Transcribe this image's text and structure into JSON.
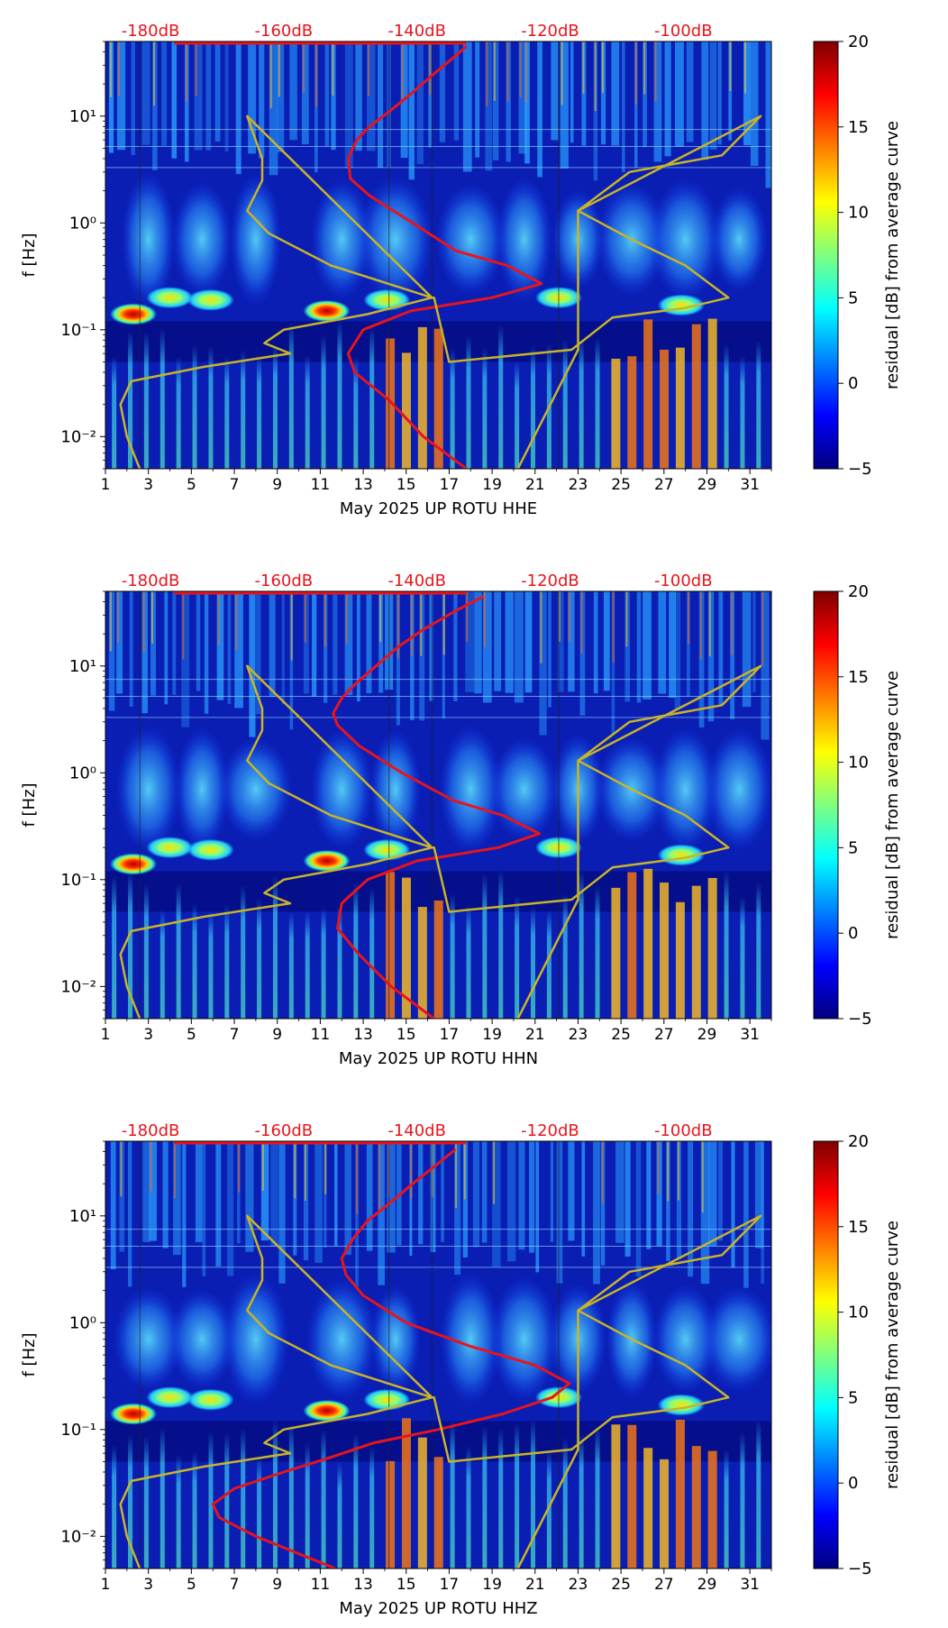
{
  "figure": {
    "colors": {
      "noise_model_curve": "#e8141c",
      "band_curve": "#c8b428",
      "top_axis_labels": "#e8141c",
      "background": "#ffffff"
    },
    "colormap_stops": [
      "#00007f",
      "#0000ff",
      "#007fff",
      "#00ffff",
      "#7fff7f",
      "#ffff00",
      "#ff7f00",
      "#ff0000",
      "#7f0000"
    ]
  },
  "chart_data": [
    {
      "type": "heatmap",
      "panel": "top",
      "title": "",
      "xlabel": "May 2025 UP ROTU  HHE",
      "ylabel": "f [Hz]",
      "x_range_days": [
        1,
        32
      ],
      "x_ticks": [
        "1",
        "3",
        "5",
        "7",
        "9",
        "11",
        "13",
        "15",
        "17",
        "19",
        "21",
        "23",
        "25",
        "27",
        "29",
        "31"
      ],
      "y_scale": "log",
      "y_range_hz": [
        0.005,
        50
      ],
      "y_tick_values": [
        0.01,
        0.1,
        1,
        10
      ],
      "y_ticks": [
        "10⁻²",
        "10⁻¹",
        "10⁰",
        "10¹"
      ],
      "top_axis_labels": [
        "-180dB",
        "-160dB",
        "-140dB",
        "-120dB",
        "-100dB"
      ],
      "colorbar": {
        "label": "residual [dB] from average curve",
        "range": [
          -5,
          20
        ],
        "ticks": [
          "−5",
          "0",
          "5",
          "10",
          "15",
          "20"
        ]
      },
      "series": [
        {
          "name": "average noise curve",
          "color": "red",
          "points_day_hz": [
            [
              17.8,
              0.005
            ],
            [
              15.8,
              0.01
            ],
            [
              14.2,
              0.022
            ],
            [
              12.6,
              0.04
            ],
            [
              12.3,
              0.06
            ],
            [
              13,
              0.1
            ],
            [
              15.2,
              0.15
            ],
            [
              19,
              0.2
            ],
            [
              21.3,
              0.27
            ],
            [
              19.7,
              0.4
            ],
            [
              17.3,
              0.55
            ],
            [
              15.3,
              1
            ],
            [
              13.3,
              1.8
            ],
            [
              12.4,
              2.6
            ],
            [
              12.3,
              4
            ],
            [
              12.7,
              6
            ],
            [
              13.3,
              8
            ],
            [
              14.2,
              11
            ],
            [
              15.2,
              16
            ],
            [
              16.2,
              24
            ],
            [
              17.1,
              34
            ],
            [
              17.8,
              45
            ]
          ]
        },
        {
          "name": "noise model bounds",
          "color": "yellow",
          "points_day_hz": [
            [
              2.6,
              0.005
            ],
            [
              2.0,
              0.01
            ],
            [
              1.7,
              0.02
            ],
            [
              2.2,
              0.033
            ],
            [
              5.6,
              0.045
            ],
            [
              9.6,
              0.06
            ],
            [
              8.4,
              0.075
            ],
            [
              9.3,
              0.1
            ],
            [
              13.2,
              0.14
            ],
            [
              16.2,
              0.2
            ],
            [
              11.5,
              0.4
            ],
            [
              8.6,
              0.8
            ],
            [
              7.6,
              1.3
            ],
            [
              8.3,
              2.5
            ],
            [
              8.3,
              4
            ],
            [
              7.6,
              10
            ],
            [
              16.2,
              0.2
            ],
            [
              16.3,
              0.2
            ],
            [
              17.0,
              0.05
            ],
            [
              22.7,
              0.065
            ],
            [
              24.6,
              0.13
            ],
            [
              28,
              0.16
            ],
            [
              30,
              0.2
            ],
            [
              28,
              0.4
            ],
            [
              25.5,
              0.7
            ],
            [
              23.0,
              1.3
            ],
            [
              25.4,
              3
            ],
            [
              29.7,
              4.3
            ],
            [
              31.5,
              10
            ],
            [
              23.0,
              1.3
            ],
            [
              23.0,
              0.065
            ],
            [
              20.2,
              0.005
            ]
          ]
        }
      ]
    },
    {
      "type": "heatmap",
      "panel": "middle",
      "title": "",
      "xlabel": "May 2025 UP ROTU  HHN",
      "ylabel": "f [Hz]",
      "x_range_days": [
        1,
        32
      ],
      "x_ticks": [
        "1",
        "3",
        "5",
        "7",
        "9",
        "11",
        "13",
        "15",
        "17",
        "19",
        "21",
        "23",
        "25",
        "27",
        "29",
        "31"
      ],
      "y_scale": "log",
      "y_range_hz": [
        0.005,
        50
      ],
      "y_tick_values": [
        0.01,
        0.1,
        1,
        10
      ],
      "y_ticks": [
        "10⁻²",
        "10⁻¹",
        "10⁰",
        "10¹"
      ],
      "top_axis_labels": [
        "-180dB",
        "-160dB",
        "-140dB",
        "-120dB",
        "-100dB"
      ],
      "colorbar": {
        "label": "residual [dB] from average curve",
        "range": [
          -5,
          20
        ],
        "ticks": [
          "−5",
          "0",
          "5",
          "10",
          "15",
          "20"
        ]
      },
      "series": [
        {
          "name": "average noise curve",
          "color": "red",
          "points_day_hz": [
            [
              16.3,
              0.005
            ],
            [
              14.3,
              0.01
            ],
            [
              12.8,
              0.02
            ],
            [
              11.8,
              0.035
            ],
            [
              12.0,
              0.06
            ],
            [
              13.2,
              0.1
            ],
            [
              15.5,
              0.15
            ],
            [
              19.3,
              0.2
            ],
            [
              21.2,
              0.27
            ],
            [
              19.5,
              0.4
            ],
            [
              17.2,
              0.55
            ],
            [
              14.8,
              1.0
            ],
            [
              12.8,
              1.8
            ],
            [
              11.8,
              2.8
            ],
            [
              11.6,
              3.6
            ],
            [
              12.0,
              5
            ],
            [
              12.7,
              7
            ],
            [
              13.6,
              10
            ],
            [
              14.6,
              15
            ],
            [
              15.8,
              22
            ],
            [
              17.2,
              32
            ],
            [
              18.6,
              45
            ]
          ]
        },
        {
          "name": "noise model bounds",
          "color": "yellow",
          "points_day_hz": [
            [
              2.6,
              0.005
            ],
            [
              2.0,
              0.01
            ],
            [
              1.7,
              0.02
            ],
            [
              2.2,
              0.033
            ],
            [
              5.6,
              0.045
            ],
            [
              9.6,
              0.06
            ],
            [
              8.4,
              0.075
            ],
            [
              9.3,
              0.1
            ],
            [
              13.2,
              0.14
            ],
            [
              16.2,
              0.2
            ],
            [
              11.5,
              0.4
            ],
            [
              8.6,
              0.8
            ],
            [
              7.6,
              1.3
            ],
            [
              8.3,
              2.5
            ],
            [
              8.3,
              4
            ],
            [
              7.6,
              10
            ],
            [
              16.2,
              0.2
            ],
            [
              16.3,
              0.2
            ],
            [
              17.0,
              0.05
            ],
            [
              22.7,
              0.065
            ],
            [
              24.6,
              0.13
            ],
            [
              28,
              0.16
            ],
            [
              30,
              0.2
            ],
            [
              28,
              0.4
            ],
            [
              25.5,
              0.7
            ],
            [
              23.0,
              1.3
            ],
            [
              25.4,
              3
            ],
            [
              29.7,
              4.3
            ],
            [
              31.5,
              10
            ],
            [
              23.0,
              1.3
            ],
            [
              23.0,
              0.065
            ],
            [
              20.2,
              0.005
            ]
          ]
        }
      ]
    },
    {
      "type": "heatmap",
      "panel": "bottom",
      "title": "",
      "xlabel": "May 2025 UP ROTU  HHZ",
      "ylabel": "f [Hz]",
      "x_range_days": [
        1,
        32
      ],
      "x_ticks": [
        "1",
        "3",
        "5",
        "7",
        "9",
        "11",
        "13",
        "15",
        "17",
        "19",
        "21",
        "23",
        "25",
        "27",
        "29",
        "31"
      ],
      "y_scale": "log",
      "y_range_hz": [
        0.005,
        50
      ],
      "y_tick_values": [
        0.01,
        0.1,
        1,
        10
      ],
      "y_ticks": [
        "10⁻²",
        "10⁻¹",
        "10⁰",
        "10¹"
      ],
      "top_axis_labels": [
        "-180dB",
        "-160dB",
        "-140dB",
        "-120dB",
        "-100dB"
      ],
      "colorbar": {
        "label": "residual [dB] from average curve",
        "range": [
          -5,
          20
        ],
        "ticks": [
          "−5",
          "0",
          "5",
          "10",
          "15",
          "20"
        ]
      },
      "series": [
        {
          "name": "average noise curve",
          "color": "red",
          "points_day_hz": [
            [
              11.7,
              0.005
            ],
            [
              8.0,
              0.01
            ],
            [
              6.3,
              0.015
            ],
            [
              6.0,
              0.02
            ],
            [
              7.0,
              0.028
            ],
            [
              9.3,
              0.04
            ],
            [
              11.5,
              0.055
            ],
            [
              13.5,
              0.075
            ],
            [
              16.5,
              0.1
            ],
            [
              19.5,
              0.14
            ],
            [
              21.8,
              0.2
            ],
            [
              22.6,
              0.27
            ],
            [
              21.0,
              0.4
            ],
            [
              18.0,
              0.6
            ],
            [
              15.0,
              1.0
            ],
            [
              13.0,
              1.8
            ],
            [
              12.2,
              2.8
            ],
            [
              12.0,
              4
            ],
            [
              12.5,
              6
            ],
            [
              13.2,
              9
            ],
            [
              14.2,
              13
            ],
            [
              15.3,
              20
            ],
            [
              16.4,
              30
            ],
            [
              17.3,
              42
            ]
          ]
        },
        {
          "name": "noise model bounds",
          "color": "yellow",
          "points_day_hz": [
            [
              2.6,
              0.005
            ],
            [
              2.0,
              0.01
            ],
            [
              1.7,
              0.02
            ],
            [
              2.2,
              0.033
            ],
            [
              5.6,
              0.045
            ],
            [
              9.6,
              0.06
            ],
            [
              8.4,
              0.075
            ],
            [
              9.3,
              0.1
            ],
            [
              13.2,
              0.14
            ],
            [
              16.2,
              0.2
            ],
            [
              11.5,
              0.4
            ],
            [
              8.6,
              0.8
            ],
            [
              7.6,
              1.3
            ],
            [
              8.3,
              2.5
            ],
            [
              8.3,
              4
            ],
            [
              7.6,
              10
            ],
            [
              16.2,
              0.2
            ],
            [
              16.3,
              0.2
            ],
            [
              17.0,
              0.05
            ],
            [
              22.7,
              0.065
            ],
            [
              24.6,
              0.13
            ],
            [
              28,
              0.16
            ],
            [
              30,
              0.2
            ],
            [
              28,
              0.4
            ],
            [
              25.5,
              0.7
            ],
            [
              23.0,
              1.3
            ],
            [
              25.4,
              3
            ],
            [
              29.7,
              4.3
            ],
            [
              31.5,
              10
            ],
            [
              23.0,
              1.3
            ],
            [
              23.0,
              0.065
            ],
            [
              20.2,
              0.005
            ]
          ]
        }
      ]
    }
  ]
}
